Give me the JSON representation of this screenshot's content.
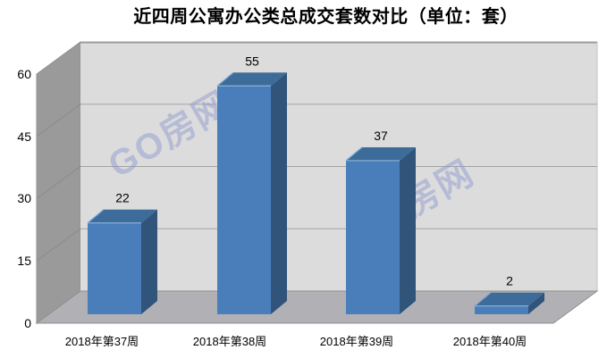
{
  "title": "近四周公寓办公类总成交套数对比（单位：套）",
  "watermark": {
    "text": "GO房网",
    "color": "#8d97cf"
  },
  "chart_data": {
    "type": "bar",
    "style": "3d-column",
    "title": "近四周公寓办公类总成交套数对比（单位：套）",
    "categories": [
      "2018年第37周",
      "2018年第38周",
      "2018年第39周",
      "2018年第40周"
    ],
    "values": [
      22,
      55,
      37,
      2
    ],
    "data_labels": [
      "22",
      "55",
      "37",
      "2"
    ],
    "xlabel": "",
    "ylabel": "",
    "ylim": [
      0,
      60
    ],
    "yticks": [
      0,
      15,
      30,
      45,
      60
    ],
    "ytick_labels": [
      "0",
      "15",
      "30",
      "45",
      "60"
    ],
    "grid": true,
    "legend": false,
    "colors": {
      "bar_front": "#4a7ebb",
      "bar_top": "#3e6c9a",
      "bar_side": "#30547a",
      "bar_bevel": "#7fa8d4",
      "left_wall": "#9a9a9a",
      "wall_gridline": "#8a8a8a",
      "back_wall": "#dcdcdc",
      "back_gridline": "#a3a3a3",
      "floor": "#b1b1b5",
      "floor_edge": "#8f8f93",
      "label_text": "#000000"
    }
  }
}
